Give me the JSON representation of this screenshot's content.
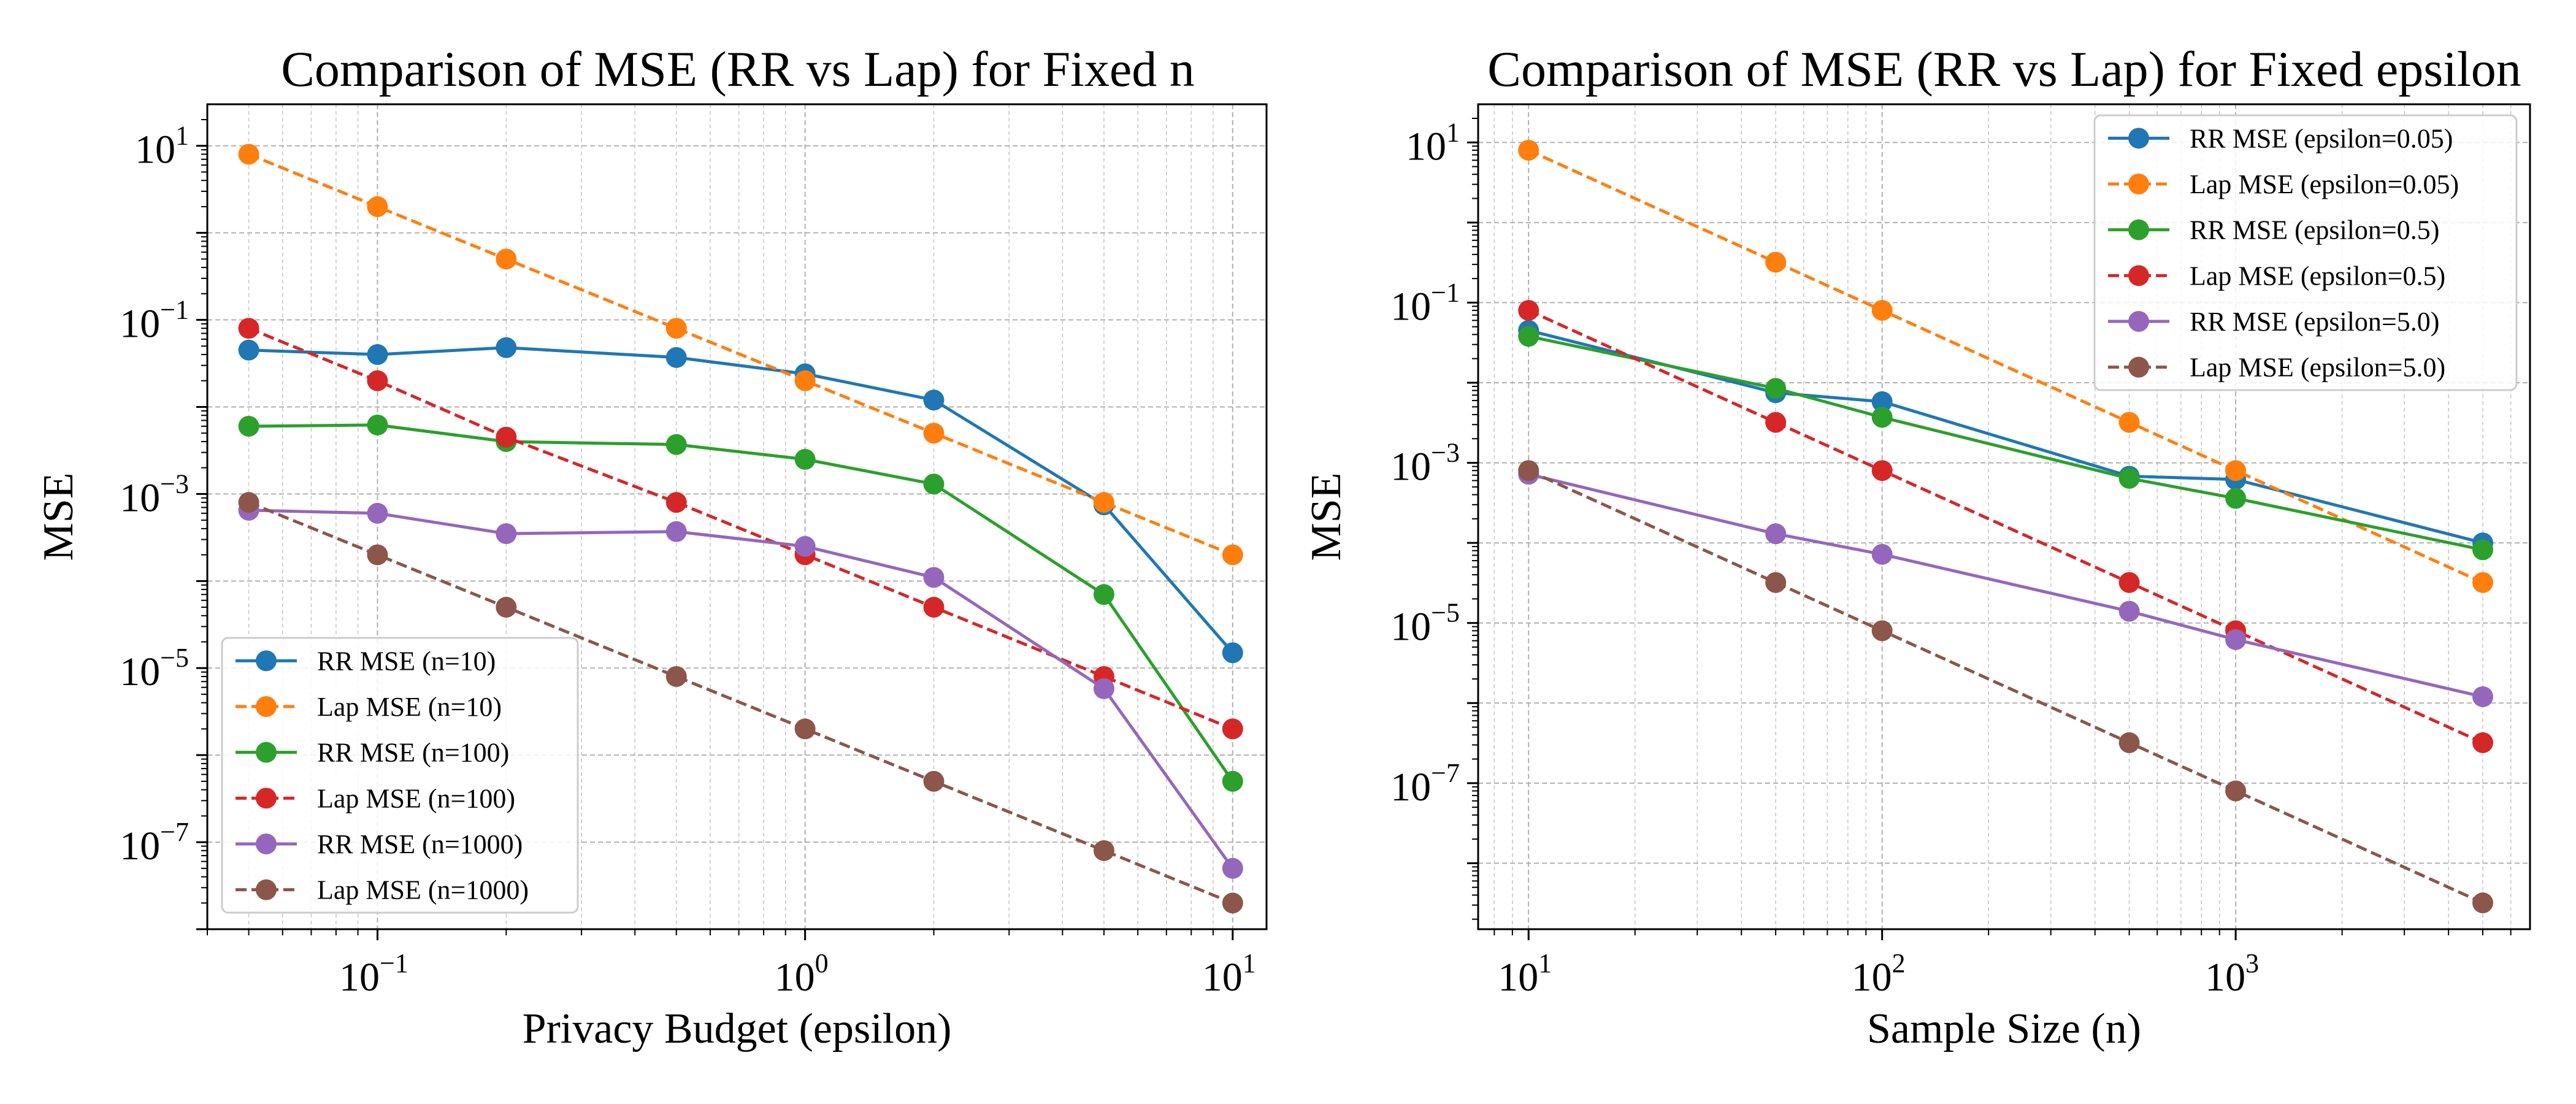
{
  "chart_data": [
    {
      "type": "line",
      "title": "Comparison of MSE (RR vs Lap) for Fixed n",
      "xlabel": "Privacy Budget (epsilon)",
      "ylabel": "MSE",
      "xscale": "log",
      "yscale": "log",
      "xlim": [
        0.04,
        12
      ],
      "ylim": [
        1e-08,
        30
      ],
      "xticks": [
        0.1,
        1,
        10
      ],
      "yticks": [
        1e-07,
        1e-05,
        0.001,
        0.1,
        10
      ],
      "grid": true,
      "grid_minor": true,
      "legend_position": "lower-left",
      "x": [
        0.05,
        0.1,
        0.2,
        0.5,
        1,
        2,
        5,
        10
      ],
      "series": [
        {
          "name": "RR MSE (n=10)",
          "color": "#1f77b4",
          "linestyle": "solid",
          "values": [
            0.045,
            0.04,
            0.048,
            0.037,
            0.024,
            0.012,
            0.00075,
            1.5e-05
          ]
        },
        {
          "name": "Lap MSE (n=10)",
          "color": "#ff7f0e",
          "linestyle": "dashed",
          "values": [
            8,
            2,
            0.5,
            0.08,
            0.02,
            0.005,
            0.0008,
            0.0002
          ]
        },
        {
          "name": "RR MSE (n=100)",
          "color": "#2ca02c",
          "linestyle": "solid",
          "values": [
            0.006,
            0.0062,
            0.004,
            0.0037,
            0.0025,
            0.0013,
            7e-05,
            5e-07
          ]
        },
        {
          "name": "Lap MSE (n=100)",
          "color": "#d62728",
          "linestyle": "dashed",
          "values": [
            0.08,
            0.02,
            0.0045,
            0.0008,
            0.0002,
            5e-05,
            8e-06,
            2e-06
          ]
        },
        {
          "name": "RR MSE (n=1000)",
          "color": "#9467bd",
          "linestyle": "solid",
          "values": [
            0.00065,
            0.0006,
            0.00035,
            0.00037,
            0.00025,
            0.00011,
            5.8e-06,
            5e-08
          ]
        },
        {
          "name": "Lap MSE (n=1000)",
          "color": "#8c564b",
          "linestyle": "dashed",
          "values": [
            0.0008,
            0.0002,
            5e-05,
            8e-06,
            2e-06,
            5e-07,
            8e-08,
            2e-08
          ]
        }
      ]
    },
    {
      "type": "line",
      "title": "Comparison of MSE (RR vs Lap) for Fixed epsilon",
      "xlabel": "Sample Size (n)",
      "ylabel": "MSE",
      "xscale": "log",
      "yscale": "log",
      "xlim": [
        7.2,
        6800
      ],
      "ylim": [
        1.5e-09,
        30
      ],
      "xticks": [
        10,
        100,
        1000
      ],
      "yticks": [
        1e-07,
        1e-05,
        0.001,
        0.1,
        10
      ],
      "grid": true,
      "grid_minor": true,
      "legend_position": "upper-right",
      "x": [
        10,
        50,
        100,
        500,
        1000,
        5000
      ],
      "series": [
        {
          "name": "RR MSE (epsilon=0.05)",
          "color": "#1f77b4",
          "linestyle": "solid",
          "values": [
            0.045,
            0.0075,
            0.0058,
            0.00068,
            0.00062,
            0.0001
          ]
        },
        {
          "name": "Lap MSE (epsilon=0.05)",
          "color": "#ff7f0e",
          "linestyle": "dashed",
          "values": [
            8,
            0.32,
            0.08,
            0.0032,
            0.0008,
            3.2e-05
          ]
        },
        {
          "name": "RR MSE (epsilon=0.5)",
          "color": "#2ca02c",
          "linestyle": "solid",
          "values": [
            0.038,
            0.0085,
            0.0037,
            0.00064,
            0.00036,
            8.2e-05
          ]
        },
        {
          "name": "Lap MSE (epsilon=0.5)",
          "color": "#d62728",
          "linestyle": "dashed",
          "values": [
            0.08,
            0.0032,
            0.0008,
            3.2e-05,
            8e-06,
            3.2e-07
          ]
        },
        {
          "name": "RR MSE (epsilon=5.0)",
          "color": "#9467bd",
          "linestyle": "solid",
          "values": [
            0.00072,
            0.00013,
            7.2e-05,
            1.4e-05,
            6.2e-06,
            1.2e-06
          ]
        },
        {
          "name": "Lap MSE (epsilon=5.0)",
          "color": "#8c564b",
          "linestyle": "dashed",
          "values": [
            0.0008,
            3.2e-05,
            8e-06,
            3.2e-07,
            8e-08,
            3.2e-09
          ]
        }
      ]
    }
  ]
}
